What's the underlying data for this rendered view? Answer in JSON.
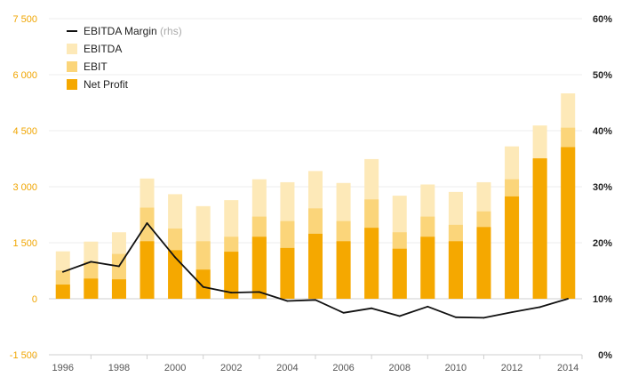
{
  "chart_data": {
    "type": "bar",
    "categories": [
      "1996",
      "1997",
      "1998",
      "1999",
      "2000",
      "2001",
      "2002",
      "2003",
      "2004",
      "2005",
      "2006",
      "2007",
      "2008",
      "2009",
      "2010",
      "2011",
      "2012",
      "2013",
      "2014"
    ],
    "x_tick_labels": [
      "1996",
      "1998",
      "2000",
      "2002",
      "2004",
      "2006",
      "2008",
      "2010",
      "2012",
      "2014"
    ],
    "y_left": {
      "ticks": [
        -1500,
        0,
        1500,
        3000,
        4500,
        6000,
        7500
      ],
      "tick_labels": [
        "-1 500",
        "0",
        "1 500",
        "3 000",
        "4 500",
        "6 000",
        "7 500"
      ],
      "ylim": [
        -1500,
        7500
      ]
    },
    "y_right": {
      "ticks": [
        0,
        10,
        20,
        30,
        40,
        50,
        60
      ],
      "tick_labels": [
        "0%",
        "10%",
        "20%",
        "30%",
        "40%",
        "50%",
        "60%"
      ],
      "ylim": [
        0,
        60
      ]
    },
    "series": [
      {
        "name": "EBITDA",
        "kind": "bar",
        "axis": "left",
        "color": "#fde9b8",
        "values": [
          1270,
          1530,
          1780,
          3220,
          2800,
          2480,
          2640,
          3200,
          3120,
          3420,
          3100,
          3740,
          2760,
          3060,
          2860,
          3120,
          4080,
          4640,
          5500
        ]
      },
      {
        "name": "EBIT",
        "kind": "bar",
        "axis": "left",
        "color": "#fbd57a",
        "values": [
          760,
          1000,
          1200,
          2440,
          1880,
          1540,
          1660,
          2200,
          2080,
          2420,
          2080,
          2660,
          1780,
          2200,
          1980,
          2340,
          3200,
          3740,
          4580
        ]
      },
      {
        "name": "Net Profit",
        "kind": "bar",
        "axis": "left",
        "color": "#f5a800",
        "values": [
          380,
          540,
          520,
          1540,
          1300,
          780,
          1260,
          1660,
          1360,
          1740,
          1540,
          1900,
          1340,
          1660,
          1540,
          1920,
          2740,
          3760,
          4060
        ]
      },
      {
        "name": "EBITDA Margin",
        "name_suffix": "(rhs)",
        "kind": "line",
        "axis": "right",
        "color": "#111111",
        "values": [
          14.8,
          16.6,
          15.8,
          23.5,
          17.4,
          12.1,
          11.1,
          11.2,
          9.6,
          9.8,
          7.5,
          8.3,
          6.9,
          8.6,
          6.7,
          6.6,
          7.6,
          8.5,
          10.0
        ]
      }
    ]
  },
  "legend": [
    {
      "label": "EBITDA Margin",
      "suffix": "(rhs)",
      "swatch": "line",
      "color": "#111111"
    },
    {
      "label": "EBITDA",
      "suffix": "",
      "swatch": "box",
      "color": "#fde9b8"
    },
    {
      "label": "EBIT",
      "suffix": "",
      "swatch": "box",
      "color": "#fbd57a"
    },
    {
      "label": "Net Profit",
      "suffix": "",
      "swatch": "box",
      "color": "#f5a800"
    }
  ]
}
